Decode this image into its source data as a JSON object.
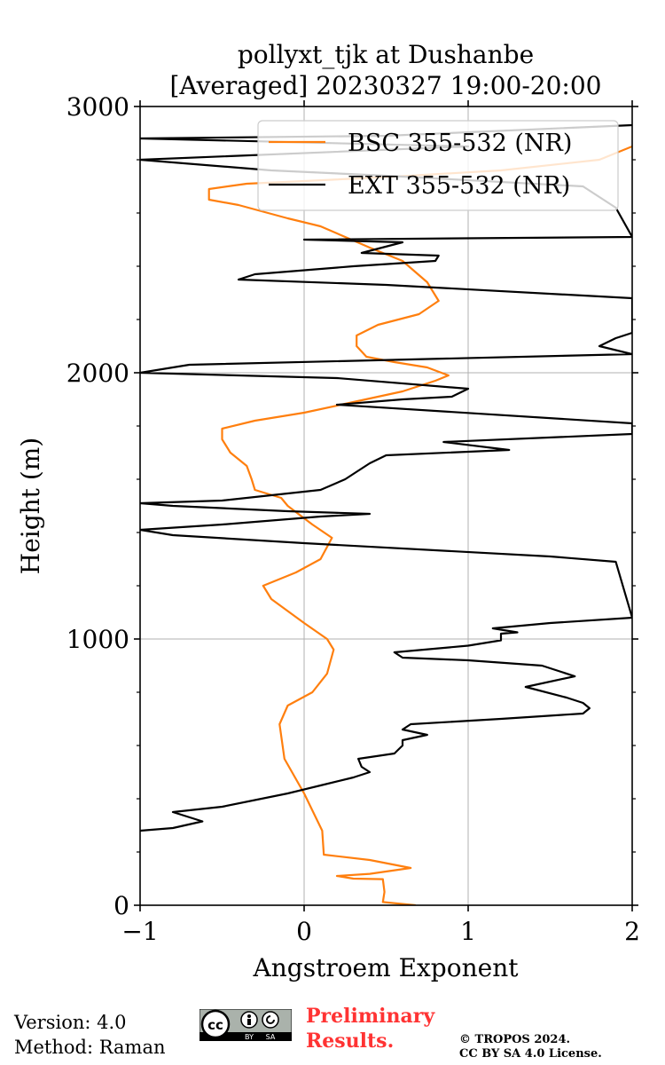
{
  "chart_data": {
    "type": "line",
    "title": "pollyxt_tjk at Dushanbe",
    "subtitle": "[Averaged] 20230327 19:00-20:00",
    "xlabel": "Angstroem Exponent",
    "ylabel": "Height (m)",
    "xlim": [
      -1,
      2
    ],
    "ylim": [
      0,
      3000
    ],
    "xticks": [
      -1,
      0,
      1,
      2
    ],
    "xtick_labels": [
      "−1",
      "0",
      "1",
      "2"
    ],
    "yticks": [
      0,
      1000,
      2000,
      3000
    ],
    "ytick_labels": [
      "0",
      "1000",
      "2000",
      "3000"
    ],
    "grid": true,
    "legend_position": "top-right",
    "series": [
      {
        "name": "BSC 355-532 (NR)",
        "color": "#ff7f0e",
        "points": [
          [
            0.68,
            0
          ],
          [
            0.48,
            12
          ],
          [
            0.49,
            50
          ],
          [
            0.48,
            98
          ],
          [
            0.3,
            100
          ],
          [
            0.2,
            110
          ],
          [
            0.4,
            118
          ],
          [
            0.65,
            140
          ],
          [
            0.4,
            170
          ],
          [
            0.12,
            190
          ],
          [
            0.11,
            280
          ],
          [
            0.0,
            420
          ],
          [
            -0.12,
            550
          ],
          [
            -0.15,
            680
          ],
          [
            -0.1,
            750
          ],
          [
            0.05,
            800
          ],
          [
            0.14,
            870
          ],
          [
            0.18,
            960
          ],
          [
            0.14,
            1000
          ],
          [
            0.0,
            1060
          ],
          [
            -0.2,
            1150
          ],
          [
            -0.25,
            1200
          ],
          [
            -0.05,
            1250
          ],
          [
            0.1,
            1300
          ],
          [
            0.17,
            1380
          ],
          [
            0.05,
            1430
          ],
          [
            -0.1,
            1500
          ],
          [
            -0.14,
            1530
          ],
          [
            -0.3,
            1560
          ],
          [
            -0.32,
            1600
          ],
          [
            -0.35,
            1650
          ],
          [
            -0.45,
            1700
          ],
          [
            -0.5,
            1750
          ],
          [
            -0.5,
            1790
          ],
          [
            -0.3,
            1820
          ],
          [
            0.0,
            1850
          ],
          [
            0.3,
            1890
          ],
          [
            0.6,
            1930
          ],
          [
            0.8,
            1970
          ],
          [
            0.88,
            1990
          ],
          [
            0.75,
            2020
          ],
          [
            0.55,
            2040
          ],
          [
            0.38,
            2060
          ],
          [
            0.32,
            2100
          ],
          [
            0.32,
            2140
          ],
          [
            0.45,
            2180
          ],
          [
            0.7,
            2220
          ],
          [
            0.82,
            2270
          ],
          [
            0.75,
            2340
          ],
          [
            0.6,
            2420
          ],
          [
            0.4,
            2470
          ],
          [
            0.25,
            2510
          ],
          [
            0.1,
            2550
          ],
          [
            -0.1,
            2580
          ],
          [
            -0.4,
            2630
          ],
          [
            -0.58,
            2650
          ],
          [
            -0.58,
            2690
          ],
          [
            -0.35,
            2710
          ],
          [
            0.0,
            2720
          ],
          [
            0.5,
            2735
          ],
          [
            1.2,
            2760
          ],
          [
            1.8,
            2800
          ],
          [
            2.0,
            2850
          ]
        ]
      },
      {
        "name": "EXT 355-532 (NR)",
        "color": "#000000",
        "points": [
          [
            -1.0,
            280
          ],
          [
            -0.8,
            290
          ],
          [
            -0.62,
            315
          ],
          [
            -0.8,
            350
          ],
          [
            -0.5,
            370
          ],
          [
            -0.1,
            420
          ],
          [
            0.1,
            450
          ],
          [
            0.3,
            480
          ],
          [
            0.4,
            500
          ],
          [
            0.35,
            520
          ],
          [
            0.33,
            550
          ],
          [
            0.55,
            570
          ],
          [
            0.6,
            600
          ],
          [
            0.6,
            620
          ],
          [
            0.75,
            640
          ],
          [
            0.6,
            660
          ],
          [
            0.65,
            680
          ],
          [
            1.2,
            700
          ],
          [
            1.7,
            720
          ],
          [
            1.74,
            740
          ],
          [
            1.7,
            760
          ],
          [
            1.6,
            780
          ],
          [
            1.35,
            820
          ],
          [
            1.65,
            860
          ],
          [
            1.45,
            900
          ],
          [
            1.0,
            920
          ],
          [
            0.6,
            930
          ],
          [
            0.55,
            950
          ],
          [
            1.0,
            975
          ],
          [
            1.2,
            995
          ],
          [
            1.2,
            1020
          ],
          [
            1.3,
            1025
          ],
          [
            1.15,
            1040
          ],
          [
            1.5,
            1060
          ],
          [
            2.0,
            1080
          ],
          [
            1.9,
            1290
          ],
          [
            1.5,
            1310
          ],
          [
            0.0,
            1360
          ],
          [
            -0.8,
            1390
          ],
          [
            -1.0,
            1410
          ],
          [
            -0.5,
            1430
          ],
          [
            0.1,
            1460
          ],
          [
            0.4,
            1470
          ],
          [
            -0.1,
            1480
          ],
          [
            -0.8,
            1500
          ],
          [
            -1.0,
            1510
          ],
          [
            -0.5,
            1520
          ],
          [
            0.1,
            1560
          ],
          [
            0.25,
            1600
          ],
          [
            0.3,
            1620
          ],
          [
            0.4,
            1660
          ],
          [
            0.5,
            1690
          ],
          [
            1.25,
            1710
          ],
          [
            0.85,
            1740
          ],
          [
            2.0,
            1770
          ],
          [
            2.0,
            1810
          ],
          [
            0.2,
            1880
          ],
          [
            0.6,
            1900
          ],
          [
            0.9,
            1910
          ],
          [
            1.0,
            1940
          ],
          [
            0.2,
            1980
          ],
          [
            -1.0,
            2000
          ],
          [
            -0.8,
            2020
          ],
          [
            -0.7,
            2030
          ],
          [
            2.0,
            2070
          ],
          [
            1.8,
            2100
          ],
          [
            1.9,
            2130
          ],
          [
            2.0,
            2150
          ],
          [
            2.0,
            2280
          ],
          [
            0.5,
            2330
          ],
          [
            -0.4,
            2350
          ],
          [
            -0.3,
            2370
          ],
          [
            0.3,
            2400
          ],
          [
            0.8,
            2420
          ],
          [
            0.82,
            2440
          ],
          [
            0.35,
            2450
          ],
          [
            0.6,
            2490
          ],
          [
            0.0,
            2500
          ],
          [
            2.0,
            2510
          ],
          [
            1.9,
            2620
          ],
          [
            1.7,
            2700
          ],
          [
            0.5,
            2740
          ],
          [
            -0.2,
            2760
          ],
          [
            -1.0,
            2800
          ],
          [
            1.0,
            2850
          ],
          [
            -1.0,
            2880
          ],
          [
            0.5,
            2890
          ],
          [
            2.0,
            2930
          ]
        ]
      }
    ]
  },
  "footer": {
    "version": "Version: 4.0",
    "method": "Method: Raman",
    "cc_label": "cc",
    "cc_by": "BY",
    "cc_sa": "SA",
    "preliminary_line1": "Preliminary",
    "preliminary_line2": "Results.",
    "copyright_line1": "© TROPOS 2024.",
    "copyright_line2": "CC BY SA 4.0 License."
  },
  "colors": {
    "preliminary": "#ff3333",
    "grid": "#b0b0b0"
  }
}
